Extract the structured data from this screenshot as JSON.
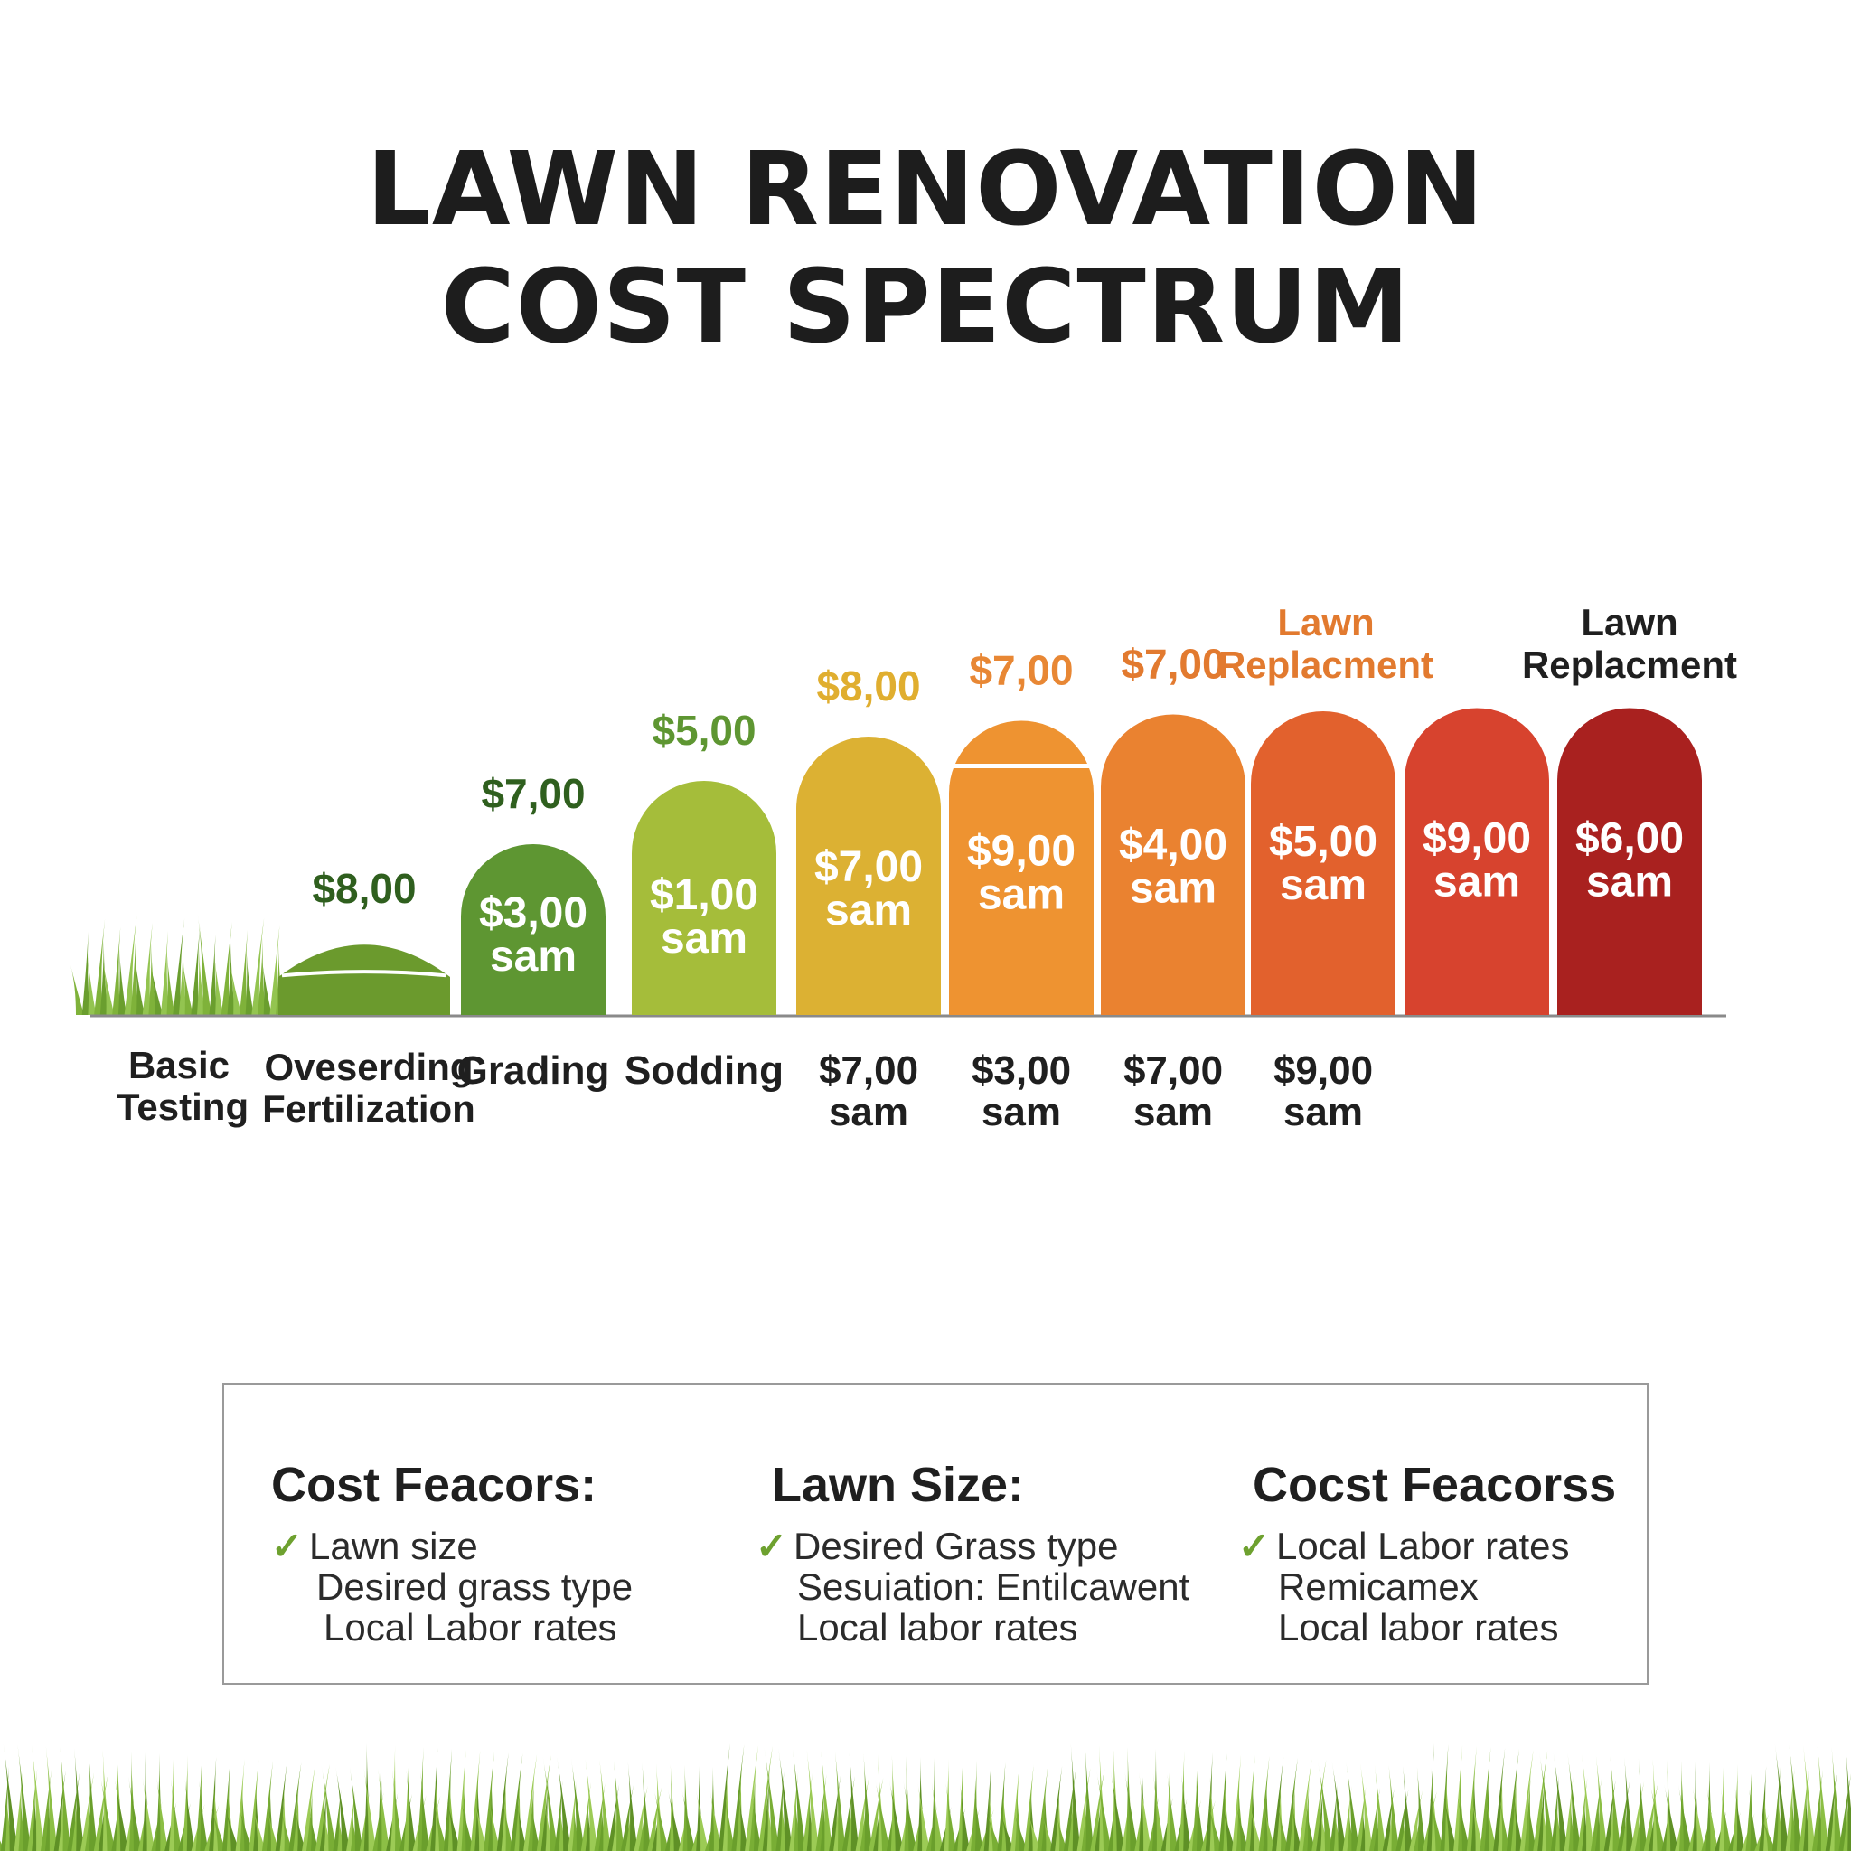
{
  "title": {
    "line1": "LAWN RENOVATION",
    "line2": "COST SPECTRUM"
  },
  "colors": {
    "bar_fills": [
      "#6b9a2d",
      "#5e9632",
      "#a5bd3a",
      "#dcb133",
      "#ee9331",
      "#ea8230",
      "#e2612d",
      "#d7432e",
      "#a9211f"
    ],
    "top_label_colors": [
      "#2f5f1e",
      "#2f5f1e",
      "#5e9632",
      "#e0ae2f",
      "#e88734",
      "#e27a2f",
      "#e27a2f",
      "#1f1f1f"
    ],
    "baseline": "#8a8a8a",
    "check": "#6ea12f"
  },
  "chart_data": {
    "type": "bar",
    "title": "",
    "xlabel": "",
    "ylabel": "",
    "grid": false,
    "bars": [
      {
        "top_label": "$8,00",
        "inner_line1": "",
        "inner_line2": "",
        "bottom_line1": "Oveserding",
        "bottom_line2": "Fertilization",
        "height_rel": 0.24
      },
      {
        "top_label": "$7,00",
        "inner_line1": "$3,00",
        "inner_line2": "sam",
        "bottom_line1": "Grading",
        "bottom_line2": "",
        "height_rel": 0.54
      },
      {
        "top_label": "$5,00",
        "inner_line1": "$1,00",
        "inner_line2": "sam",
        "bottom_line1": "Sodding",
        "bottom_line2": "",
        "height_rel": 0.74
      },
      {
        "top_label": "$8,00",
        "inner_line1": "$7,00",
        "inner_line2": "sam",
        "bottom_line1": "$7,00",
        "bottom_line2": "sam",
        "height_rel": 0.88
      },
      {
        "top_label": "$7,00",
        "inner_line1": "$9,00",
        "inner_line2": "sam",
        "bottom_line1": "$3,00",
        "bottom_line2": "sam",
        "height_rel": 0.93
      },
      {
        "top_label": "$7,00",
        "inner_line1": "$4,00",
        "inner_line2": "sam",
        "bottom_line1": "$7,00",
        "bottom_line2": "sam",
        "height_rel": 0.95
      },
      {
        "top_label": "",
        "inner_line1": "$5,00",
        "inner_line2": "sam",
        "bottom_line1": "$9,00",
        "bottom_line2": "sam",
        "height_rel": 0.96
      },
      {
        "top_label": "",
        "inner_line1": "$9,00",
        "inner_line2": "sam",
        "bottom_line1": "",
        "bottom_line2": "",
        "height_rel": 0.97
      },
      {
        "top_label": "",
        "inner_line1": "$6,00",
        "inner_line2": "sam",
        "bottom_line1": "",
        "bottom_line2": "",
        "height_rel": 0.97
      }
    ],
    "first_category": {
      "line1": "Basic",
      "line2": "Testing"
    },
    "annotations": [
      {
        "line1": "Lawn",
        "line2": "Replacment",
        "color": "#e27a2f"
      },
      {
        "line1": "Lawn",
        "line2": "Replacment",
        "color": "#1f1f1f"
      }
    ]
  },
  "factors": [
    {
      "heading": "Cost Feacors:",
      "check": "✓",
      "items": [
        "Lawn size",
        "Desired grass type",
        "Local Labor rates"
      ]
    },
    {
      "heading": "Lawn Size:",
      "check": "✓",
      "items": [
        "Desired Grass type",
        "Sesuiation: Entilcawent",
        "Local labor rates"
      ]
    },
    {
      "heading": "Cocst Feacorss",
      "check": "✓",
      "items": [
        "Local Labor rates",
        "Remicamex",
        "Local labor rates"
      ]
    }
  ]
}
